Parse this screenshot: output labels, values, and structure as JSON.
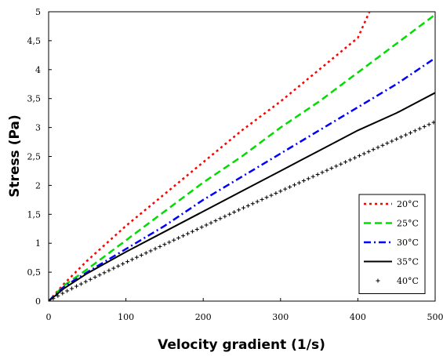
{
  "chart_data": {
    "type": "line",
    "title": "",
    "xlabel": "Velocity gradient (1/s)",
    "ylabel": "Stress (Pa)",
    "xlim": [
      0,
      500
    ],
    "ylim": [
      0,
      5
    ],
    "x_ticks": [
      "0",
      "100",
      "200",
      "300",
      "400",
      "500"
    ],
    "y_ticks": [
      "0",
      "0,5",
      "1",
      "1,5",
      "2",
      "2,5",
      "3",
      "3,5",
      "4",
      "4,5",
      "5"
    ],
    "grid": false,
    "legend_position": "bottom-right",
    "series": [
      {
        "name": "20°C",
        "color": "#ff0000",
        "style": "dotted",
        "x": [
          0,
          20,
          50,
          100,
          150,
          200,
          250,
          300,
          350,
          400,
          415
        ],
        "y": [
          0,
          0.3,
          0.7,
          1.3,
          1.85,
          2.4,
          2.95,
          3.45,
          4.0,
          4.55,
          5.0
        ]
      },
      {
        "name": "25°C",
        "color": "#00dd00",
        "style": "dashed",
        "x": [
          0,
          20,
          50,
          100,
          150,
          200,
          250,
          300,
          350,
          400,
          450,
          500
        ],
        "y": [
          0,
          0.27,
          0.55,
          1.05,
          1.55,
          2.05,
          2.5,
          3.0,
          3.45,
          3.95,
          4.45,
          4.95
        ]
      },
      {
        "name": "30°C",
        "color": "#0000ff",
        "style": "dash-dot",
        "x": [
          0,
          20,
          50,
          100,
          150,
          200,
          250,
          300,
          350,
          400,
          450,
          500
        ],
        "y": [
          0,
          0.25,
          0.5,
          0.9,
          1.3,
          1.75,
          2.15,
          2.55,
          2.95,
          3.35,
          3.75,
          4.2
        ]
      },
      {
        "name": "35°C",
        "color": "#000000",
        "style": "solid",
        "x": [
          0,
          20,
          50,
          100,
          150,
          200,
          250,
          300,
          350,
          400,
          450,
          500
        ],
        "y": [
          0,
          0.22,
          0.48,
          0.85,
          1.2,
          1.55,
          1.9,
          2.25,
          2.6,
          2.95,
          3.25,
          3.6
        ]
      },
      {
        "name": "40°C",
        "color": "#000000",
        "style": "plus",
        "x": [
          0,
          20,
          50,
          100,
          150,
          200,
          250,
          300,
          350,
          400,
          450,
          500
        ],
        "y": [
          0,
          0.15,
          0.35,
          0.67,
          0.98,
          1.29,
          1.6,
          1.9,
          2.2,
          2.5,
          2.8,
          3.1
        ]
      }
    ]
  }
}
